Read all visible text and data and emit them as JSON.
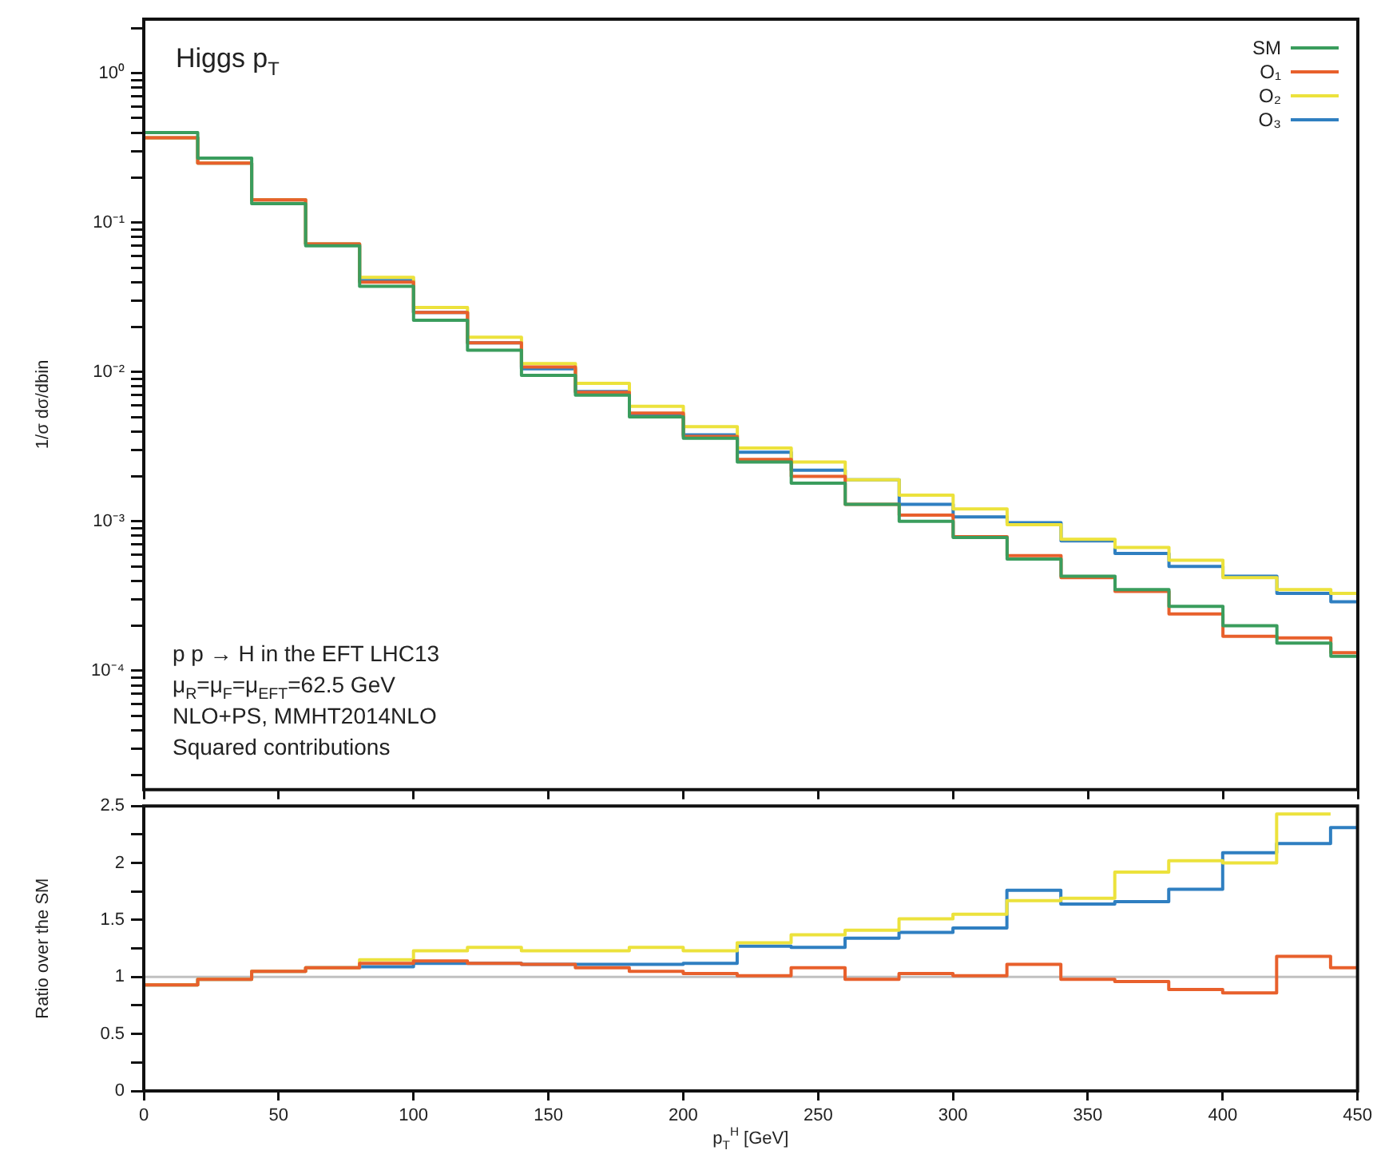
{
  "chart_data": [
    {
      "type": "histogram",
      "title": "Higgs p$_{T}$",
      "ylabel": "1/σ dσ/dbin",
      "annotations": [
        "p p → H in the EFT LHC13",
        "μ$_{R}$=μ$_{F}$=μ$_{EFT}$=62.5 GeV",
        "NLO+PS, MMHT2014NLO",
        "Squared contributions"
      ],
      "bins": [
        0,
        20,
        40,
        60,
        80,
        100,
        120,
        140,
        160,
        180,
        200,
        220,
        240,
        260,
        280,
        300,
        320,
        340,
        360,
        380,
        400,
        420,
        440,
        450
      ],
      "series": [
        {
          "name": "SM",
          "color": "#3a9d5d",
          "values": [
            0.4,
            0.27,
            0.134,
            0.07,
            0.0375,
            0.0222,
            0.014,
            0.0095,
            0.007,
            0.005,
            0.0036,
            0.0025,
            0.0018,
            0.0013,
            0.001,
            0.00078,
            0.00056,
            0.00043,
            0.00035,
            0.00027,
            0.0002,
            0.000153,
            0.000125
          ]
        },
        {
          "name": "O₁",
          "color": "#e8602c",
          "values": [
            0.37,
            0.25,
            0.142,
            0.072,
            0.04,
            0.025,
            0.0157,
            0.0108,
            0.0073,
            0.0053,
            0.0037,
            0.0026,
            0.002,
            0.0013,
            0.0011,
            0.00079,
            0.00059,
            0.00042,
            0.00034,
            0.00024,
            0.00017,
            0.000166,
            0.000132
          ]
        },
        {
          "name": "O₂",
          "color": "#ece23c",
          "values": [
            0.37,
            0.25,
            0.142,
            0.072,
            0.043,
            0.027,
            0.0171,
            0.0114,
            0.0084,
            0.0059,
            0.0043,
            0.0031,
            0.0025,
            0.0019,
            0.0015,
            0.00121,
            0.00095,
            0.00076,
            0.00067,
            0.00055,
            0.00042,
            0.00035,
            0.00033
          ]
        },
        {
          "name": "O₃",
          "color": "#2f7fc1",
          "values": [
            0.37,
            0.25,
            0.142,
            0.072,
            0.041,
            0.025,
            0.0157,
            0.0105,
            0.0074,
            0.0052,
            0.0038,
            0.0029,
            0.0022,
            0.0019,
            0.0013,
            0.00107,
            0.00098,
            0.00074,
            0.00061,
            0.0005,
            0.00043,
            0.00033,
            0.00029
          ]
        }
      ],
      "xlim": [
        0,
        450
      ],
      "xticks": [
        0,
        50,
        100,
        150,
        200,
        250,
        300,
        350,
        400,
        450
      ],
      "ylim": [
        1.6e-05,
        2.3
      ],
      "yticks": [
        {
          "value": 2e-05,
          "label": null
        },
        {
          "value": 3e-05,
          "label": null
        },
        {
          "value": 4e-05,
          "label": null
        },
        {
          "value": 5e-05,
          "label": null
        },
        {
          "value": 6e-05,
          "label": null
        },
        {
          "value": 7e-05,
          "label": null
        },
        {
          "value": 8e-05,
          "label": null
        },
        {
          "value": 9e-05,
          "label": null
        },
        {
          "value": 0.0001,
          "label": "10⁻⁴"
        },
        {
          "value": 0.0002,
          "label": null
        },
        {
          "value": 0.0003,
          "label": null
        },
        {
          "value": 0.0004,
          "label": null
        },
        {
          "value": 0.0005,
          "label": null
        },
        {
          "value": 0.0006,
          "label": null
        },
        {
          "value": 0.0007,
          "label": null
        },
        {
          "value": 0.0008,
          "label": null
        },
        {
          "value": 0.0009,
          "label": null
        },
        {
          "value": 0.001,
          "label": "10⁻³"
        },
        {
          "value": 0.002,
          "label": null
        },
        {
          "value": 0.003,
          "label": null
        },
        {
          "value": 0.004,
          "label": null
        },
        {
          "value": 0.005,
          "label": null
        },
        {
          "value": 0.006,
          "label": null
        },
        {
          "value": 0.007,
          "label": null
        },
        {
          "value": 0.008,
          "label": null
        },
        {
          "value": 0.009,
          "label": null
        },
        {
          "value": 0.01,
          "label": "10⁻²"
        },
        {
          "value": 0.02,
          "label": null
        },
        {
          "value": 0.03,
          "label": null
        },
        {
          "value": 0.04,
          "label": null
        },
        {
          "value": 0.05,
          "label": null
        },
        {
          "value": 0.06,
          "label": null
        },
        {
          "value": 0.07,
          "label": null
        },
        {
          "value": 0.08,
          "label": null
        },
        {
          "value": 0.09,
          "label": null
        },
        {
          "value": 0.1,
          "label": "10⁻¹"
        },
        {
          "value": 0.2,
          "label": null
        },
        {
          "value": 0.3,
          "label": null
        },
        {
          "value": 0.4,
          "label": null
        },
        {
          "value": 0.5,
          "label": null
        },
        {
          "value": 0.6,
          "label": null
        },
        {
          "value": 0.7,
          "label": null
        },
        {
          "value": 0.8,
          "label": null
        },
        {
          "value": 0.9,
          "label": null
        },
        {
          "value": 1,
          "label": "10⁰"
        },
        {
          "value": 2,
          "label": null
        }
      ],
      "log": "y",
      "legend": "top right",
      "tick_labels": "y"
    },
    {
      "type": "histogram",
      "ylabel": "Ratio over the SM",
      "xlabel": "p$_{T}$$^{H}$ [GeV]",
      "bins": [
        0,
        20,
        40,
        60,
        80,
        100,
        120,
        140,
        160,
        180,
        200,
        220,
        240,
        260,
        280,
        300,
        320,
        340,
        360,
        380,
        400,
        420,
        440,
        450
      ],
      "series": [
        {
          "color": "#e8602c",
          "values": [
            0.93,
            0.98,
            1.05,
            1.08,
            1.12,
            1.14,
            1.12,
            1.11,
            1.08,
            1.05,
            1.03,
            1.01,
            1.08,
            0.98,
            1.03,
            1.01,
            1.11,
            0.98,
            0.96,
            0.89,
            0.86,
            1.18,
            1.08
          ]
        },
        {
          "color": "#ece23c",
          "bins": [
            0,
            20,
            40,
            60,
            80,
            100,
            120,
            140,
            160,
            180,
            200,
            220,
            240,
            260,
            280,
            300,
            320,
            340,
            360,
            380,
            400,
            420,
            440
          ],
          "values": [
            0.93,
            0.98,
            1.05,
            1.08,
            1.15,
            1.23,
            1.26,
            1.23,
            1.23,
            1.26,
            1.23,
            1.3,
            1.37,
            1.41,
            1.51,
            1.55,
            1.67,
            1.69,
            1.92,
            2.02,
            2.0,
            2.43
          ]
        },
        {
          "color": "#2f7fc1",
          "values": [
            0.93,
            0.98,
            1.05,
            1.08,
            1.09,
            1.12,
            1.12,
            1.11,
            1.11,
            1.11,
            1.12,
            1.27,
            1.26,
            1.34,
            1.39,
            1.43,
            1.76,
            1.64,
            1.66,
            1.77,
            2.09,
            2.17,
            2.31
          ]
        }
      ],
      "ref_lines": [
        {
          "axis": "y",
          "value": 1,
          "color": "#c0c0c0"
        }
      ],
      "xlim": [
        0,
        450
      ],
      "xticks": [
        0,
        50,
        100,
        150,
        200,
        250,
        300,
        350,
        400,
        450
      ],
      "ylim": [
        0,
        2.5
      ],
      "yticks": [
        0,
        {
          "value": 0.25,
          "label": null
        },
        0.5,
        {
          "value": 0.75,
          "label": null
        },
        1,
        {
          "value": 1.25,
          "label": null
        },
        1.5,
        {
          "value": 1.75,
          "label": null
        },
        2,
        {
          "value": 2.25,
          "label": null
        },
        2.5
      ]
    }
  ]
}
